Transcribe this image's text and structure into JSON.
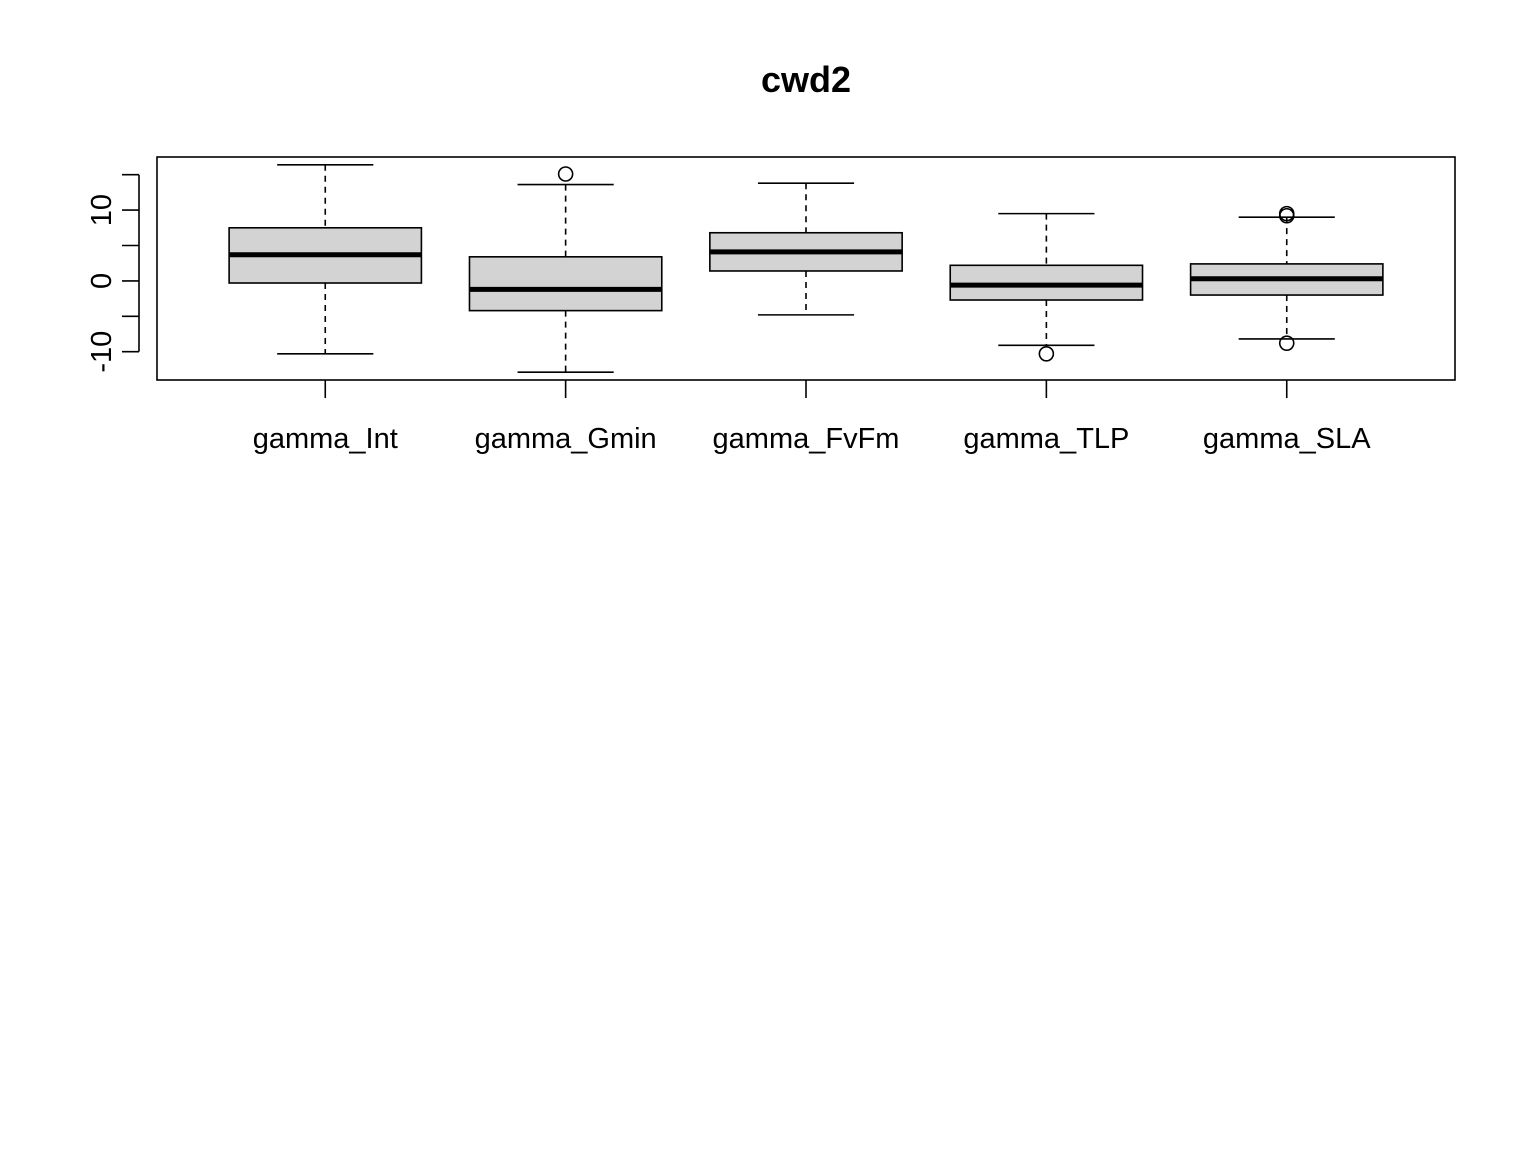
{
  "chart_data": {
    "type": "boxplot",
    "title": "cwd2",
    "xlabel": "",
    "ylabel": "",
    "ylim": [
      -14,
      17.5
    ],
    "yticks": [
      -10,
      -5,
      0,
      5,
      10,
      15
    ],
    "ytick_labels": [
      "-10",
      "",
      "0",
      "",
      "10",
      ""
    ],
    "grid": false,
    "colors": {
      "box_fill": "#d3d3d3",
      "stroke": "#000000"
    },
    "categories": [
      "gamma_Int",
      "gamma_Gmin",
      "gamma_FvFm",
      "gamma_TLP",
      "gamma_SLA"
    ],
    "boxes": [
      {
        "whisker_low": -10.3,
        "q1": -0.3,
        "median": 3.7,
        "q3": 7.5,
        "whisker_high": 16.4,
        "outliers": []
      },
      {
        "whisker_low": -12.9,
        "q1": -4.2,
        "median": -1.2,
        "q3": 3.4,
        "whisker_high": 13.6,
        "outliers": [
          15.1
        ]
      },
      {
        "whisker_low": -4.8,
        "q1": 1.4,
        "median": 4.1,
        "q3": 6.8,
        "whisker_high": 13.8,
        "outliers": []
      },
      {
        "whisker_low": -9.1,
        "q1": -2.7,
        "median": -0.6,
        "q3": 2.2,
        "whisker_high": 9.5,
        "outliers": [
          -10.3
        ]
      },
      {
        "whisker_low": -8.2,
        "q1": -2.0,
        "median": 0.3,
        "q3": 2.4,
        "whisker_high": 9.0,
        "outliers": [
          9.2,
          9.5,
          -8.8
        ]
      }
    ]
  }
}
